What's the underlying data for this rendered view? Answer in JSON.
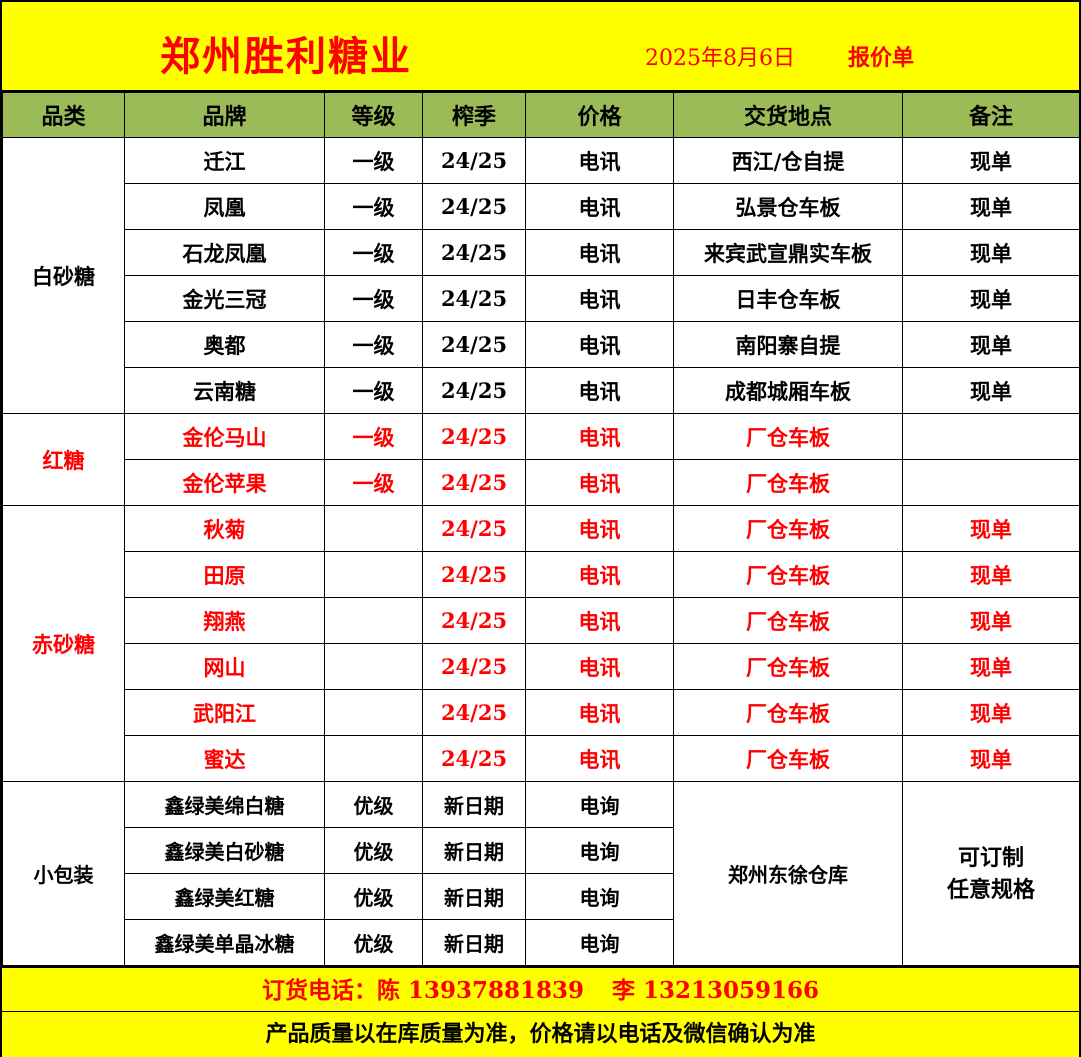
{
  "title": {
    "company": "郑州胜利糖业",
    "date": "2025年8月6日",
    "doc_type": "报价单"
  },
  "columns": [
    "品类",
    "品牌",
    "等级",
    "榨季",
    "价格",
    "交货地点",
    "备注"
  ],
  "groups": [
    {
      "category": "白砂糖",
      "red": false,
      "rows": [
        [
          "迁江",
          "一级",
          "24/25",
          "电讯",
          "西江/仓自提",
          "现单"
        ],
        [
          "凤凰",
          "一级",
          "24/25",
          "电讯",
          "弘景仓车板",
          "现单"
        ],
        [
          "石龙凤凰",
          "一级",
          "24/25",
          "电讯",
          "来宾武宣鼎实车板",
          "现单"
        ],
        [
          "金光三冠",
          "一级",
          "24/25",
          "电讯",
          "日丰仓车板",
          "现单"
        ],
        [
          "奥都",
          "一级",
          "24/25",
          "电讯",
          "南阳寨自提",
          "现单"
        ],
        [
          "云南糖",
          "一级",
          "24/25",
          "电讯",
          "成都城厢车板",
          "现单"
        ]
      ]
    },
    {
      "category": "红糖",
      "red": true,
      "rows": [
        [
          "金伦马山",
          "一级",
          "24/25",
          "电讯",
          "厂仓车板",
          ""
        ],
        [
          "金伦苹果",
          "一级",
          "24/25",
          "电讯",
          "厂仓车板",
          ""
        ]
      ]
    },
    {
      "category": "赤砂糖",
      "red": true,
      "rows": [
        [
          "秋菊",
          "",
          "24/25",
          "电讯",
          "厂仓车板",
          "现单"
        ],
        [
          "田原",
          "",
          "24/25",
          "电讯",
          "厂仓车板",
          "现单"
        ],
        [
          "翔燕",
          "",
          "24/25",
          "电讯",
          "厂仓车板",
          "现单"
        ],
        [
          "网山",
          "",
          "24/25",
          "电讯",
          "厂仓车板",
          "现单"
        ],
        [
          "武阳江",
          "",
          "24/25",
          "电讯",
          "厂仓车板",
          "现单"
        ],
        [
          "蜜达",
          "",
          "24/25",
          "电讯",
          "厂仓车板",
          "现单"
        ]
      ]
    }
  ],
  "small_package": {
    "category": "小包装",
    "location": "郑州东徐仓库",
    "note_line1": "可订制",
    "note_line2": "任意规格",
    "rows": [
      [
        "鑫绿美绵白糖",
        "优级",
        "新日期",
        "电询"
      ],
      [
        "鑫绿美白砂糖",
        "优级",
        "新日期",
        "电询"
      ],
      [
        "鑫绿美红糖",
        "优级",
        "新日期",
        "电询"
      ],
      [
        "鑫绿美单晶冰糖",
        "优级",
        "新日期",
        "电询"
      ]
    ]
  },
  "footer": {
    "phone_label": "订货电话：陈  13937881839",
    "phone2": "李  13213059166",
    "notice": "产品质量以在库质量为准，价格请以电话及微信确认为准"
  },
  "colors": {
    "yellow": "#ffff00",
    "header_green": "#9bbb59",
    "red": "#ff0000"
  }
}
